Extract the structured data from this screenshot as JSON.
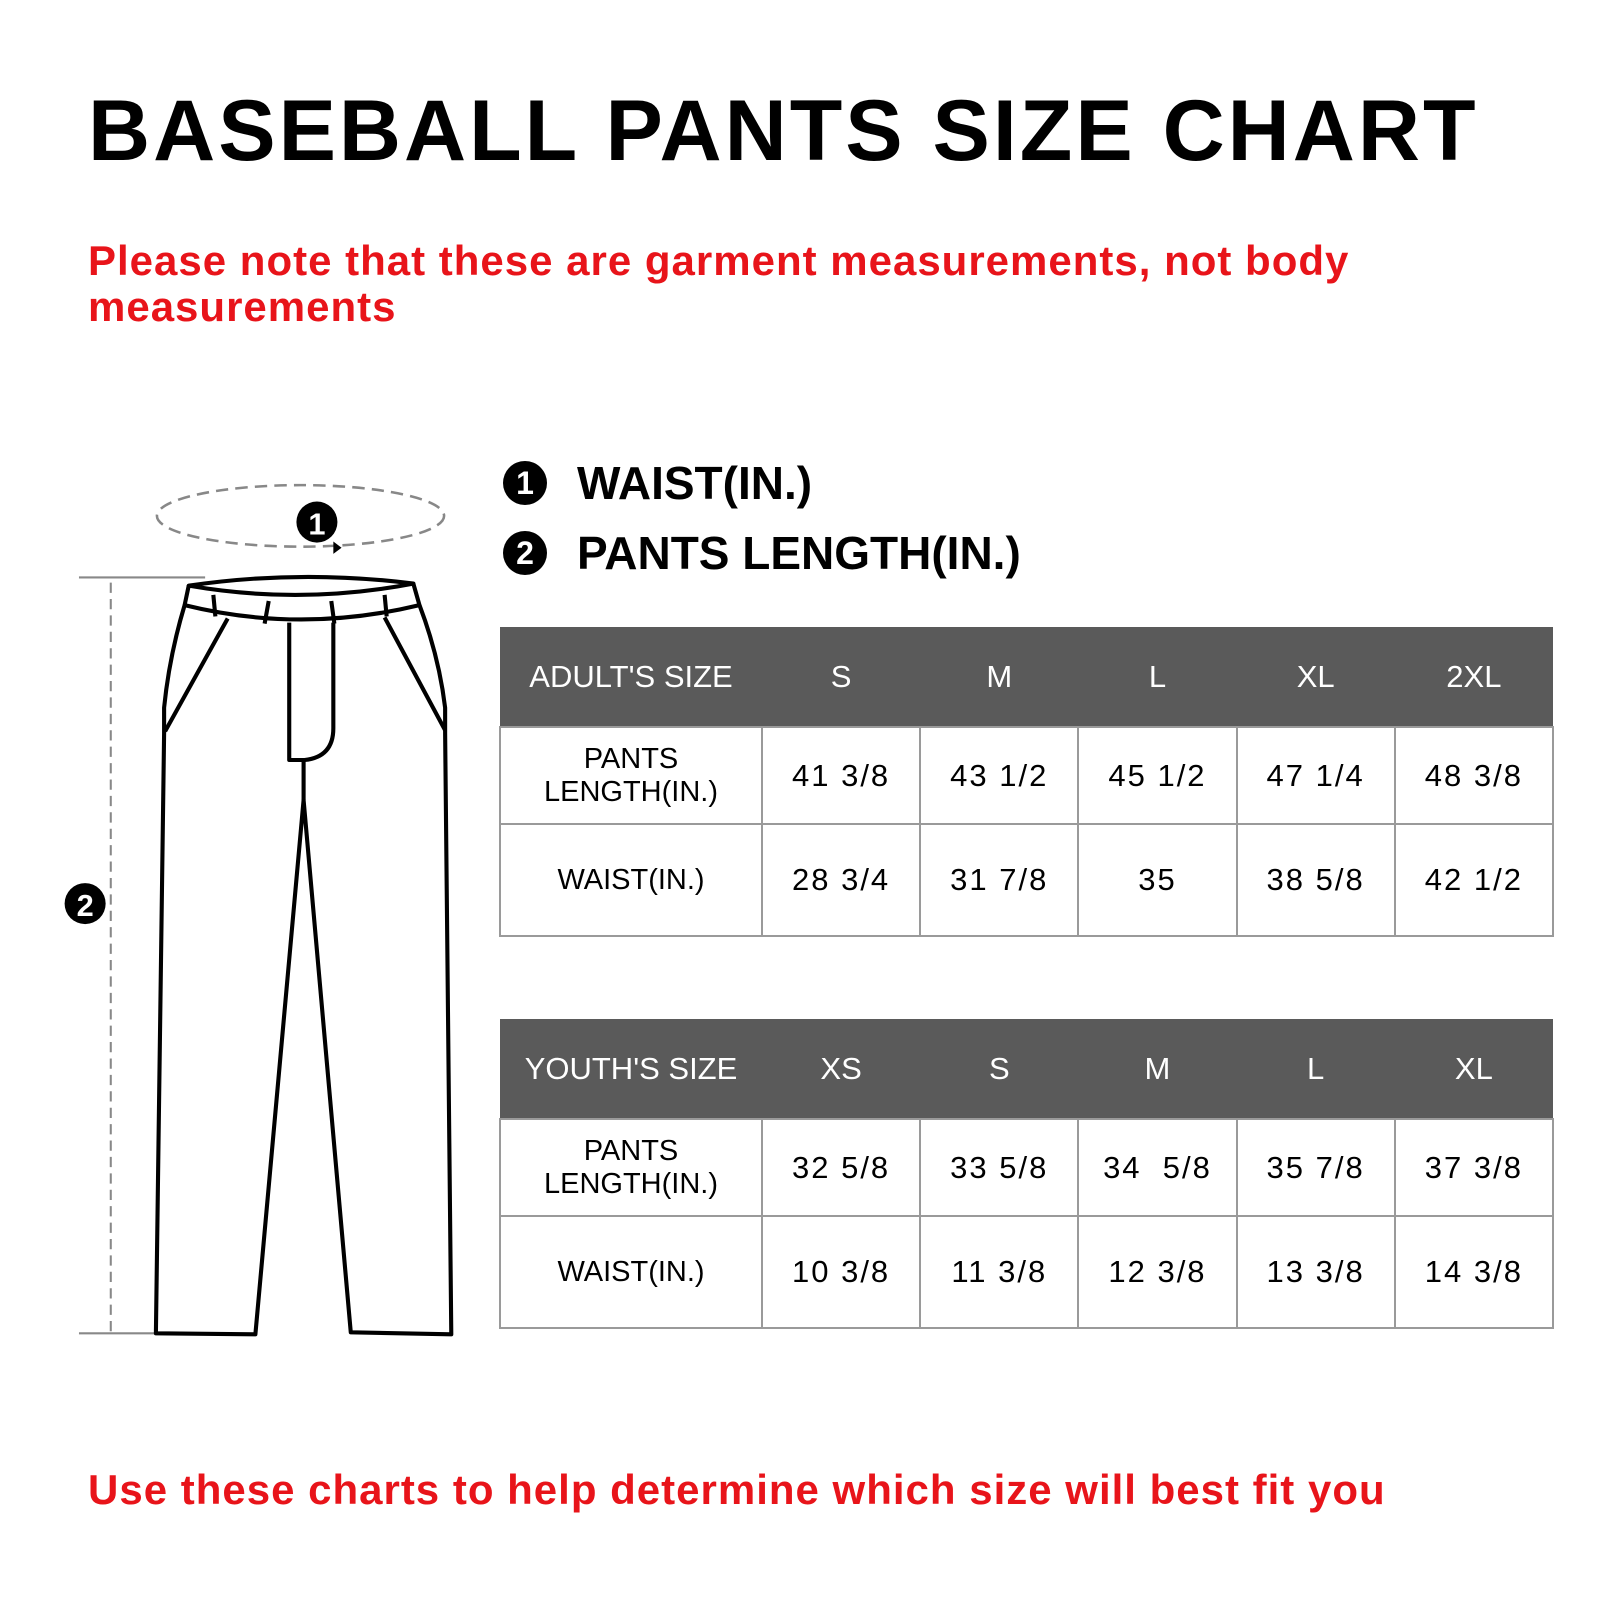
{
  "title": "BASEBALL PANTS SIZE CHART",
  "note": "Please note that these are garment measurements, not body measurements",
  "legend": [
    {
      "number": "1",
      "label": "WAIST(IN.)"
    },
    {
      "number": "2",
      "label": "PANTS LENGTH(IN.)"
    }
  ],
  "diagram": {
    "waist_marker": "1",
    "length_marker": "2"
  },
  "adult_table": {
    "header": [
      "ADULT'S SIZE",
      "S",
      "M",
      "L",
      "XL",
      "2XL"
    ],
    "rows": [
      {
        "label": "PANTS LENGTH(IN.)",
        "values": [
          "41 3/8",
          "43 1/2",
          "45 1/2",
          "47 1/4",
          "48 3/8"
        ]
      },
      {
        "label": "WAIST(IN.)",
        "values": [
          "28 3/4",
          "31 7/8",
          "35",
          "38 5/8",
          "42 1/2"
        ]
      }
    ]
  },
  "youth_table": {
    "header": [
      "YOUTH'S SIZE",
      "XS",
      "S",
      "M",
      "L",
      "XL"
    ],
    "rows": [
      {
        "label": "PANTS LENGTH(IN.)",
        "values": [
          "32 5/8",
          "33 5/8",
          "34  5/8",
          "35 7/8",
          "37 3/8"
        ]
      },
      {
        "label": "WAIST(IN.)",
        "values": [
          "10 3/8",
          "11 3/8",
          "12 3/8",
          "13 3/8",
          "14 3/8"
        ]
      }
    ]
  },
  "footer": "Use these charts to help determine which size will best fit you",
  "colors": {
    "accent_red": "#e8141a",
    "header_gray": "#5a5a5a",
    "border_gray": "#9a9a9a"
  }
}
